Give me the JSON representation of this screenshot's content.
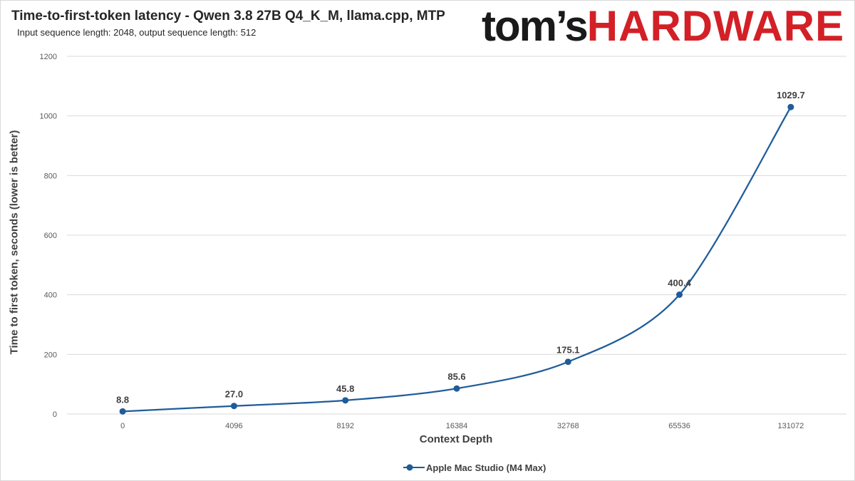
{
  "title": "Time-to-first-token latency - Qwen 3.8 27B Q4_K_M, llama.cpp, MTP",
  "subtitle": "Input sequence length: 2048, output sequence length: 512",
  "logo": {
    "part1": "tom’s",
    "part2": "HARDWARE"
  },
  "colors": {
    "series": "#1f5c99",
    "grid": "#d9d9d9",
    "text": "#404040",
    "logo_red": "#d32027"
  },
  "chart_data": {
    "type": "line",
    "title": "Time-to-first-token latency - Qwen 3.8 27B Q4_K_M, llama.cpp, MTP",
    "subtitle": "Input sequence length: 2048, output sequence length: 512",
    "xlabel": "Context Depth",
    "ylabel": "Time to first token, seconds (lower is better)",
    "categories": [
      "0",
      "4096",
      "8192",
      "16384",
      "32768",
      "65536",
      "131072"
    ],
    "series": [
      {
        "name": "Apple Mac Studio (M4 Max)",
        "values": [
          8.8,
          27.0,
          45.8,
          85.6,
          175.1,
          400.4,
          1029.7
        ],
        "labels": [
          "8.8",
          "27.0",
          "45.8",
          "85.6",
          "175.1",
          "400.4",
          "1029.7"
        ]
      }
    ],
    "yticks": [
      "0",
      "200",
      "400",
      "600",
      "800",
      "1000",
      "1200"
    ],
    "ylim": [
      0,
      1200
    ],
    "grid": true,
    "legend": "bottom"
  }
}
